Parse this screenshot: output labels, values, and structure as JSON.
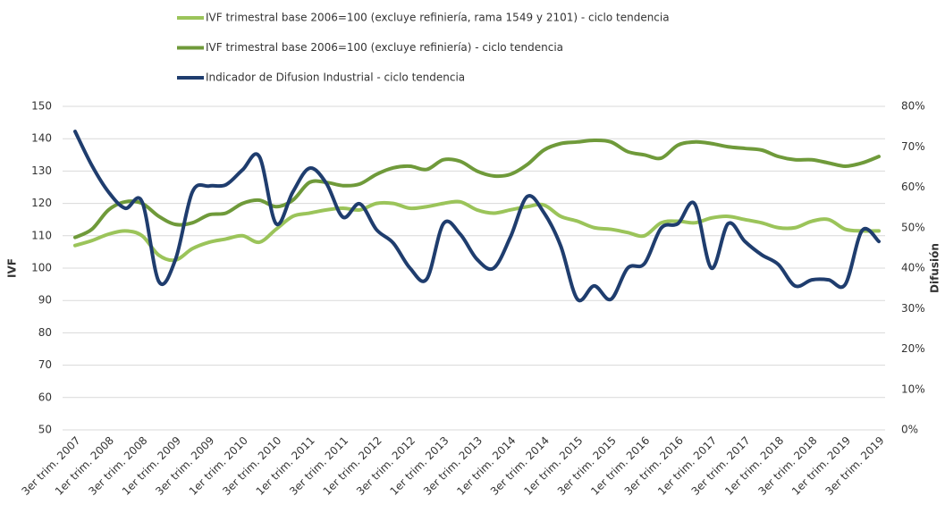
{
  "chart_data": {
    "type": "line",
    "ylabel": "IVF",
    "y2label": "Difusión",
    "categories": [
      "3er trim. 2007",
      null,
      "1er trim. 2008",
      null,
      "3er trim. 2008",
      null,
      "1er trim. 2009",
      null,
      "3er trim. 2009",
      null,
      "1er trim. 2010",
      null,
      "3er trim. 2010",
      null,
      "1er trim. 2011",
      null,
      "3er trim. 2011",
      null,
      "1er trim. 2012",
      null,
      "3er trim. 2012",
      null,
      "1er trim. 2013",
      null,
      "3er trim. 2013",
      null,
      "1er trim. 2014",
      null,
      "3er trim. 2014",
      null,
      "1er trim. 2015",
      null,
      "3er trim. 2015",
      null,
      "1er trim. 2016",
      null,
      "3er trim. 2016",
      null,
      "1er trim. 2017",
      null,
      "3er trim. 2017",
      null,
      "1er trim. 2018",
      null,
      "3er trim. 2018",
      null,
      "1er trim. 2019",
      null,
      "3er trim. 2019"
    ],
    "series": [
      {
        "name": "IVF trimestral base 2006=100 (excluye refiniería, rama 1549 y 2101) - ciclo tendencia",
        "color": "#9bc45a",
        "values": [
          107,
          108.5,
          110.5,
          111.5,
          110,
          104,
          102.5,
          106,
          108,
          109,
          110,
          108,
          112,
          116,
          117,
          118,
          118.5,
          118,
          120,
          120,
          118.5,
          119,
          120,
          120.5,
          118,
          117,
          118,
          119,
          119.5,
          116,
          114.5,
          112.5,
          112,
          111,
          110,
          114,
          114.5,
          114,
          115.5,
          116,
          115,
          114,
          112.5,
          112.5,
          114.5,
          115,
          112,
          111.5,
          111.5
        ]
      },
      {
        "name": "IVF trimestral base 2006=100 (excluye refiniería) - ciclo tendencia",
        "color": "#6f9a3a",
        "values": [
          109.5,
          112,
          118,
          120.5,
          120,
          116,
          113.5,
          114,
          116.5,
          117,
          120,
          121,
          119,
          121,
          126.5,
          126.5,
          125.5,
          126,
          129,
          131,
          131.5,
          130.5,
          133.5,
          133,
          130,
          128.5,
          129,
          132,
          136.5,
          138.5,
          139,
          139.5,
          139,
          136,
          135,
          134,
          138,
          139,
          138.5,
          137.5,
          137,
          136.5,
          134.5,
          133.5,
          133.5,
          132.5,
          131.5,
          132.5,
          134.5
        ]
      },
      {
        "name": "Indicador de Difusion Industrial - ciclo tendencia",
        "color": "#1f3d6e",
        "axis": "y2",
        "values": [
          73.8,
          65.4,
          58.8,
          54.8,
          56.4,
          36.7,
          42.2,
          58.8,
          60.3,
          60.6,
          64.3,
          67.6,
          51,
          58.8,
          64.7,
          61,
          52.6,
          55.9,
          49.5,
          46.2,
          40,
          37.3,
          51,
          48.4,
          42.2,
          40,
          47.7,
          57.7,
          53.7,
          45.5,
          32.3,
          35.6,
          32.3,
          40,
          41.1,
          49.9,
          51,
          55.9,
          40,
          51,
          46.6,
          43.3,
          40.9,
          35.6,
          37.1,
          37.1,
          36,
          49.3,
          46.6
        ]
      }
    ],
    "ylim": [
      50,
      150
    ],
    "yticks": [
      50,
      60,
      70,
      80,
      90,
      100,
      110,
      120,
      130,
      140,
      150
    ],
    "y2lim": [
      0,
      80
    ],
    "y2ticks": [
      {
        "value": 0,
        "label": "0%"
      },
      {
        "value": 10,
        "label": "10%"
      },
      {
        "value": 20,
        "label": "20%"
      },
      {
        "value": 30,
        "label": "30%"
      },
      {
        "value": 40,
        "label": "40%"
      },
      {
        "value": 50,
        "label": "50%"
      },
      {
        "value": 60,
        "label": "60%"
      },
      {
        "value": 70,
        "label": "70%"
      },
      {
        "value": 80,
        "label": "80%"
      }
    ],
    "grid": true
  }
}
